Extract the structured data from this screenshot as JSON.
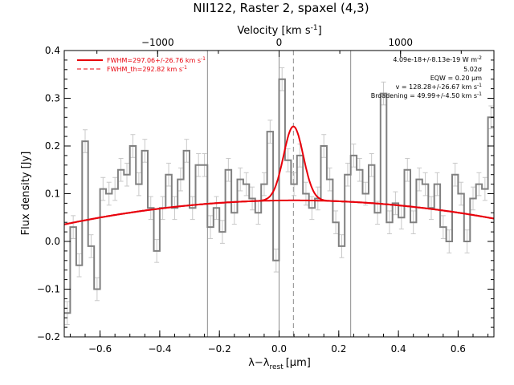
{
  "chart_data": {
    "type": "line",
    "title": "NII122, Raster 2, spaxel (4,3)",
    "xlabel": "λ−λ",
    "xlabel_sub": "rest",
    "xlabel_unit": "[μm]",
    "ylabel": "Flux density [Jy]",
    "top_axis_label": "Velocity [km s",
    "top_axis_label_sup": "-1",
    "top_axis_label_end": "]",
    "xlim": [
      -0.72,
      0.72
    ],
    "ylim": [
      -0.2,
      0.4
    ],
    "x_ticks": [
      -0.6,
      -0.4,
      -0.2,
      0.0,
      0.2,
      0.4,
      0.6
    ],
    "x_tick_labels": [
      "−0.6",
      "−0.4",
      "−0.2",
      "0.0",
      "0.2",
      "0.4",
      "0.6"
    ],
    "y_ticks": [
      -0.2,
      -0.1,
      0.0,
      0.1,
      0.2,
      0.3,
      0.4
    ],
    "y_tick_labels": [
      "−0.2",
      "−0.1",
      "0.0",
      "0.1",
      "0.2",
      "0.3",
      "0.4"
    ],
    "top_ticks": [
      -1000,
      0,
      1000
    ],
    "top_tick_labels": [
      "−1000",
      "0",
      "1000"
    ],
    "vertical_lines_solid": [
      -0.24,
      0.0,
      0.24
    ],
    "vertical_line_dashed": 0.048,
    "bin_width": 0.02,
    "spectrum": {
      "x": [
        -0.71,
        -0.69,
        -0.67,
        -0.65,
        -0.63,
        -0.61,
        -0.59,
        -0.57,
        -0.55,
        -0.53,
        -0.51,
        -0.49,
        -0.47,
        -0.45,
        -0.43,
        -0.41,
        -0.39,
        -0.37,
        -0.35,
        -0.33,
        -0.31,
        -0.29,
        -0.27,
        -0.25,
        -0.23,
        -0.21,
        -0.19,
        -0.17,
        -0.15,
        -0.13,
        -0.11,
        -0.09,
        -0.07,
        -0.05,
        -0.03,
        -0.01,
        0.01,
        0.03,
        0.05,
        0.07,
        0.09,
        0.11,
        0.13,
        0.15,
        0.17,
        0.19,
        0.21,
        0.23,
        0.25,
        0.27,
        0.29,
        0.31,
        0.33,
        0.35,
        0.37,
        0.39,
        0.41,
        0.43,
        0.45,
        0.47,
        0.49,
        0.51,
        0.53,
        0.55,
        0.57,
        0.59,
        0.61,
        0.63,
        0.65,
        0.67,
        0.69,
        0.71
      ],
      "y": [
        -0.15,
        0.03,
        -0.05,
        0.21,
        -0.01,
        -0.1,
        0.11,
        0.1,
        0.11,
        0.15,
        0.14,
        0.2,
        0.12,
        0.19,
        0.07,
        -0.02,
        0.07,
        0.14,
        0.07,
        0.13,
        0.19,
        0.07,
        0.16,
        0.16,
        0.03,
        0.07,
        0.02,
        0.15,
        0.06,
        0.13,
        0.12,
        0.09,
        0.06,
        0.12,
        0.23,
        -0.04,
        0.34,
        0.17,
        0.12,
        0.18,
        0.1,
        0.07,
        0.09,
        0.2,
        0.13,
        0.04,
        -0.01,
        0.14,
        0.18,
        0.15,
        0.1,
        0.16,
        0.06,
        0.31,
        0.04,
        0.08,
        0.05,
        0.15,
        0.04,
        0.13,
        0.12,
        0.07,
        0.12,
        0.03,
        0.0,
        0.14,
        0.1,
        0.0,
        0.09,
        0.12,
        0.11,
        0.26
      ],
      "err": 0.024
    },
    "series": [
      {
        "name": "FWHM=297.06+/-26.76 km s",
        "color": "#e8000b",
        "style": "solid",
        "sup": "-1"
      },
      {
        "name": "FWHM_th=292.82 km s",
        "color": "#e8000b",
        "style": "dashed",
        "sup": "-1"
      }
    ],
    "fit": {
      "continuum_center_x": 0.05,
      "continuum_peak": 0.086,
      "continuum_curvature": 0.085,
      "gaussian_center_x": 0.048,
      "gaussian_amplitude": 0.155,
      "gaussian_sigma": 0.033
    },
    "annotations": {
      "line1": "4.09e-18+/-8.13e-19 W m",
      "line1_sup": "-2",
      "line2": "5.02σ",
      "line3": "EQW = 0.20 μm",
      "line4": "v = 128.28+/-26.67 km s",
      "line4_sup": "-1",
      "line5": "Broadening = 49.99+/-4.50 km s",
      "line5_sup": "-1"
    },
    "colors": {
      "spectrum": "#808080",
      "errorbar": "#c8c8c8",
      "fit": "#e8000b",
      "vlines": "#8c8c8c",
      "axes": "#000000"
    },
    "grid": false,
    "legend_position": "top-left"
  }
}
